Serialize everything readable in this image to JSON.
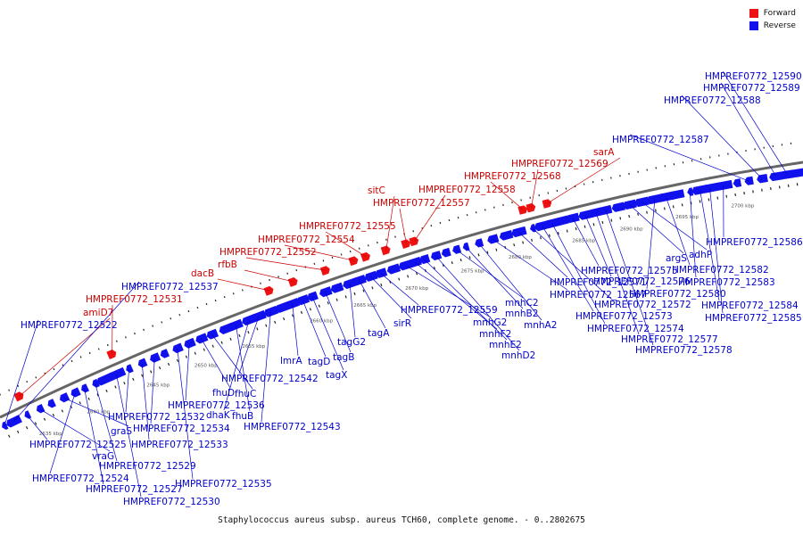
{
  "legend": {
    "forward": {
      "label": "Forward",
      "color": "#ee1111"
    },
    "reverse": {
      "label": "Reverse",
      "color": "#1111ee"
    }
  },
  "caption": "Staphylococcus aureus subsp. aureus TCH60, complete genome. - 0..2802675",
  "backbone_color": "#888888",
  "label_colors": {
    "forward": "#cc0000",
    "reverse": "#0000cc"
  },
  "tick_labels": [
    "2635 kbp",
    "2640 kbp",
    "2645 kbp",
    "2650 kbp",
    "2655 kbp",
    "2660 kbp",
    "2665 kbp",
    "2670 kbp",
    "2675 kbp",
    "2680 kbp",
    "2685 kbp",
    "2690 kbp",
    "2695 kbp",
    "2700 kbp"
  ],
  "forward_genes": [
    "amiD7",
    "HMPREF0772_12531",
    "dacB",
    "rfbB",
    "HMPREF0772_12552",
    "HMPREF0772_12554",
    "HMPREF0772_12555",
    "sitC",
    "HMPREF0772_12557",
    "HMPREF0772_12558",
    "HMPREF0772_12568",
    "HMPREF0772_12569",
    "sarA"
  ],
  "reverse_genes": [
    "HMPREF0772_12522",
    "HMPREF0772_12537",
    "HMPREF0772_12525",
    "vraG",
    "graS",
    "HMPREF0772_12524",
    "HMPREF0772_12527",
    "HMPREF0772_12529",
    "HMPREF0772_12530",
    "HMPREF0772_12532",
    "HMPREF0772_12533",
    "HMPREF0772_12534",
    "HMPREF0772_12535",
    "HMPREF0772_12536",
    "fhuD",
    "fhuC",
    "fhuB",
    "dhaK",
    "HMPREF0772_12542",
    "HMPREF0772_12543",
    "lmrA",
    "tagD",
    "tagX",
    "tagB",
    "tagG2",
    "tagA",
    "sirR",
    "HMPREF0772_12559",
    "mnhG2",
    "mnhF2",
    "mnhE2",
    "mnhD2",
    "mnhC2",
    "mnhB2",
    "mnhA2",
    "HMPREF0772_12567",
    "HMPREF0772_12571",
    "HMPREF0772_12572",
    "HMPREF0772_12573",
    "HMPREF0772_12574",
    "HMPREF0772_12575",
    "HMPREF0772_12576",
    "HMPREF0772_12577",
    "HMPREF0772_12578",
    "argS",
    "adhP",
    "HMPREF0772_12580",
    "HMPREF0772_12582",
    "HMPREF0772_12583",
    "HMPREF0772_12584",
    "HMPREF0772_12585",
    "HMPREF0772_12586",
    "HMPREF0772_12587",
    "HMPREF0772_12588",
    "HMPREF0772_12589",
    "HMPREF0772_12590"
  ]
}
